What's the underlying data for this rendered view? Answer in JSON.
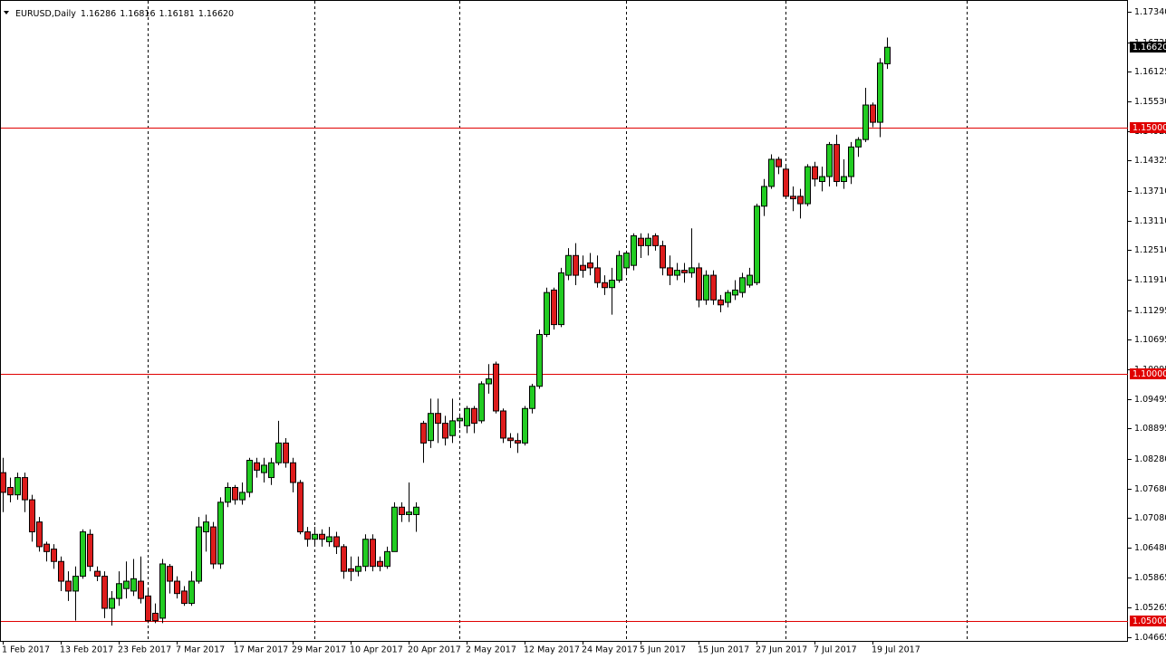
{
  "chart_data": {
    "type": "candlestick",
    "symbol": "EURUSD,Daily",
    "header_ohlc": [
      "1.16286",
      "1.16816",
      "1.16181",
      "1.16620"
    ],
    "categories": [
      "1 Feb 2017",
      null,
      null,
      null,
      null,
      null,
      null,
      null,
      "13 Feb 2017",
      null,
      null,
      null,
      null,
      null,
      null,
      null,
      "23 Feb 2017",
      null,
      null,
      null,
      null,
      null,
      null,
      null,
      "7 Mar 2017",
      null,
      null,
      null,
      null,
      null,
      null,
      null,
      "17 Mar 2017",
      null,
      null,
      null,
      null,
      null,
      null,
      null,
      "29 Mar 2017",
      null,
      null,
      null,
      null,
      null,
      null,
      null,
      "10 Apr 2017",
      null,
      null,
      null,
      null,
      null,
      null,
      null,
      "20 Apr 2017",
      null,
      null,
      null,
      null,
      null,
      null,
      null,
      "2 May 2017",
      null,
      null,
      null,
      null,
      null,
      null,
      null,
      "12 May 2017",
      null,
      null,
      null,
      null,
      null,
      null,
      null,
      "24 May 2017",
      null,
      null,
      null,
      null,
      null,
      null,
      null,
      "5 Jun 2017",
      null,
      null,
      null,
      null,
      null,
      null,
      null,
      "15 Jun 2017",
      null,
      null,
      null,
      null,
      null,
      null,
      null,
      "27 Jun 2017",
      null,
      null,
      null,
      null,
      null,
      null,
      null,
      "7 Jul 2017",
      null,
      null,
      null,
      null,
      null,
      null,
      null,
      "19 Jul 2017",
      null,
      null
    ],
    "open": [
      1.08,
      1.077,
      1.0755,
      1.079,
      1.0745,
      1.07,
      1.0655,
      1.0645,
      1.062,
      1.058,
      1.056,
      1.059,
      1.0675,
      1.06,
      1.059,
      1.0525,
      1.0545,
      1.0565,
      1.056,
      1.058,
      1.055,
      1.0515,
      1.0505,
      1.061,
      1.058,
      1.056,
      1.0535,
      1.058,
      1.068,
      1.069,
      1.0615,
      1.074,
      1.077,
      1.0745,
      1.076,
      1.082,
      1.08,
      1.079,
      1.082,
      1.086,
      1.082,
      1.078,
      1.068,
      1.0665,
      1.0675,
      1.066,
      1.067,
      1.065,
      1.0605,
      1.06,
      1.061,
      1.0665,
      1.062,
      1.061,
      1.064,
      1.073,
      1.0715,
      1.0715,
      1.09,
      1.0865,
      1.092,
      1.09,
      1.0875,
      1.0905,
      1.0895,
      1.093,
      1.0905,
      1.098,
      1.102,
      1.0925,
      1.087,
      1.0865,
      1.086,
      1.093,
      1.0975,
      1.108,
      1.117,
      1.11,
      1.12,
      1.124,
      1.122,
      1.1225,
      1.1215,
      1.1185,
      1.1175,
      1.119,
      1.1215,
      1.122,
      1.1275,
      1.126,
      1.128,
      1.126,
      1.1215,
      1.12,
      1.121,
      1.1205,
      1.1215,
      1.115,
      1.12,
      1.115,
      1.1145,
      1.116,
      1.1165,
      1.118,
      1.1185,
      1.134,
      1.138,
      1.1435,
      1.1415,
      1.136,
      1.136,
      1.1345,
      1.142,
      1.139,
      1.14,
      1.1465,
      1.139,
      1.14,
      1.146,
      1.1475,
      1.1545,
      1.151,
      1.16286
    ],
    "high": [
      1.083,
      1.079,
      1.08,
      1.08,
      1.0755,
      1.071,
      1.066,
      1.0655,
      1.063,
      1.06,
      1.061,
      1.0685,
      1.0685,
      1.061,
      1.06,
      1.056,
      1.06,
      1.062,
      1.0625,
      1.063,
      1.0565,
      1.0535,
      1.0625,
      1.0615,
      1.059,
      1.057,
      1.06,
      1.071,
      1.0715,
      1.07,
      1.075,
      1.078,
      1.0775,
      1.078,
      1.083,
      1.083,
      1.083,
      1.083,
      1.0905,
      1.087,
      1.083,
      1.0785,
      1.069,
      1.069,
      1.0685,
      1.069,
      1.068,
      1.0655,
      1.063,
      1.063,
      1.0675,
      1.0675,
      1.063,
      1.065,
      1.074,
      1.074,
      1.078,
      1.074,
      1.0905,
      1.095,
      1.095,
      1.0915,
      1.095,
      1.092,
      1.0935,
      1.0935,
      1.0985,
      1.102,
      1.1025,
      1.093,
      1.088,
      1.088,
      1.0935,
      1.098,
      1.109,
      1.1175,
      1.1175,
      1.1215,
      1.1255,
      1.1265,
      1.124,
      1.1245,
      1.124,
      1.12,
      1.1215,
      1.125,
      1.125,
      1.1285,
      1.1285,
      1.1285,
      1.1285,
      1.127,
      1.124,
      1.1225,
      1.1225,
      1.1295,
      1.1225,
      1.121,
      1.121,
      1.116,
      1.117,
      1.119,
      1.1205,
      1.1215,
      1.1345,
      1.1395,
      1.1445,
      1.144,
      1.142,
      1.138,
      1.1375,
      1.1425,
      1.143,
      1.142,
      1.147,
      1.1485,
      1.1435,
      1.147,
      1.148,
      1.158,
      1.155,
      1.164,
      1.16816
    ],
    "low": [
      1.072,
      1.074,
      1.0745,
      1.072,
      1.066,
      1.064,
      1.062,
      1.0605,
      1.056,
      1.054,
      1.05,
      1.0585,
      1.06,
      1.058,
      1.0505,
      1.049,
      1.053,
      1.0545,
      1.055,
      1.0535,
      1.0495,
      1.0495,
      1.0495,
      1.0555,
      1.0545,
      1.053,
      1.053,
      1.0575,
      1.064,
      1.0605,
      1.0605,
      1.073,
      1.0735,
      1.0735,
      1.075,
      1.079,
      1.078,
      1.0775,
      1.0815,
      1.081,
      1.076,
      1.0675,
      1.065,
      1.065,
      1.065,
      1.065,
      1.0635,
      1.0585,
      1.058,
      1.059,
      1.06,
      1.06,
      1.06,
      1.0605,
      1.064,
      1.07,
      1.07,
      1.068,
      1.082,
      1.085,
      1.086,
      1.0855,
      1.086,
      1.089,
      1.088,
      1.088,
      1.09,
      1.096,
      1.092,
      1.086,
      1.085,
      1.084,
      1.0855,
      1.092,
      1.097,
      1.1075,
      1.109,
      1.1095,
      1.119,
      1.118,
      1.1195,
      1.12,
      1.1175,
      1.116,
      1.112,
      1.1185,
      1.12,
      1.121,
      1.1235,
      1.124,
      1.125,
      1.12,
      1.118,
      1.119,
      1.1185,
      1.1195,
      1.1135,
      1.114,
      1.114,
      1.1125,
      1.1135,
      1.115,
      1.1155,
      1.1175,
      1.118,
      1.132,
      1.1375,
      1.1405,
      1.1355,
      1.133,
      1.1315,
      1.134,
      1.138,
      1.137,
      1.138,
      1.138,
      1.1375,
      1.1385,
      1.144,
      1.147,
      1.15,
      1.148,
      1.16181
    ],
    "close": [
      1.076,
      1.0755,
      1.079,
      1.0745,
      1.068,
      1.065,
      1.064,
      1.062,
      1.058,
      1.056,
      1.059,
      1.068,
      1.061,
      1.059,
      1.0525,
      1.0545,
      1.0575,
      1.058,
      1.0585,
      1.0545,
      1.05,
      1.05,
      1.0615,
      1.058,
      1.0555,
      1.0535,
      1.058,
      1.069,
      1.07,
      1.0615,
      1.074,
      1.077,
      1.0745,
      1.076,
      1.0825,
      1.0805,
      1.0815,
      1.082,
      1.086,
      1.082,
      1.078,
      1.068,
      1.0665,
      1.0675,
      1.0665,
      1.067,
      1.065,
      1.06,
      1.06,
      1.061,
      1.0665,
      1.061,
      1.061,
      1.064,
      1.073,
      1.0715,
      1.072,
      1.073,
      1.086,
      1.092,
      1.09,
      1.087,
      1.0905,
      1.091,
      1.093,
      1.09,
      1.098,
      1.099,
      1.0925,
      1.087,
      1.0865,
      1.086,
      1.093,
      1.0975,
      1.108,
      1.1165,
      1.11,
      1.1205,
      1.124,
      1.12,
      1.121,
      1.1215,
      1.1185,
      1.1175,
      1.119,
      1.124,
      1.1245,
      1.128,
      1.126,
      1.1275,
      1.126,
      1.1215,
      1.12,
      1.121,
      1.1205,
      1.1215,
      1.115,
      1.12,
      1.115,
      1.114,
      1.1165,
      1.117,
      1.1195,
      1.12,
      1.134,
      1.138,
      1.1435,
      1.142,
      1.136,
      1.1355,
      1.1345,
      1.142,
      1.1395,
      1.14,
      1.1465,
      1.139,
      1.14,
      1.146,
      1.1475,
      1.1545,
      1.151,
      1.163,
      1.1662
    ],
    "up_color": "#22cc22",
    "down_color": "#dd1c1c",
    "ylim": [
      1.0459,
      1.1756
    ],
    "yticks": [
      {
        "value": 1.1734,
        "label": "1.17340"
      },
      {
        "value": 1.16725,
        "label": "1.16725"
      },
      {
        "value": 1.16125,
        "label": "1.16125"
      },
      {
        "value": 1.1553,
        "label": "1.15530"
      },
      {
        "value": 1.14925,
        "label": "1.14925"
      },
      {
        "value": 1.14325,
        "label": "1.14325"
      },
      {
        "value": 1.1371,
        "label": "1.13710"
      },
      {
        "value": 1.1311,
        "label": "1.13110"
      },
      {
        "value": 1.1251,
        "label": "1.12510"
      },
      {
        "value": 1.1191,
        "label": "1.11910"
      },
      {
        "value": 1.11295,
        "label": "1.11295"
      },
      {
        "value": 1.10695,
        "label": "1.10695"
      },
      {
        "value": 1.10095,
        "label": "1.10095"
      },
      {
        "value": 1.09495,
        "label": "1.09495"
      },
      {
        "value": 1.08895,
        "label": "1.08895"
      },
      {
        "value": 1.0828,
        "label": "1.08280"
      },
      {
        "value": 1.0768,
        "label": "1.07680"
      },
      {
        "value": 1.0708,
        "label": "1.07080"
      },
      {
        "value": 1.0648,
        "label": "1.06480"
      },
      {
        "value": 1.05865,
        "label": "1.05865"
      },
      {
        "value": 1.05265,
        "label": "1.05265"
      },
      {
        "value": 1.04665,
        "label": "1.04665"
      }
    ],
    "levels": [
      {
        "value": 1.15,
        "label": "1.15000"
      },
      {
        "value": 1.1,
        "label": "1.10000"
      },
      {
        "value": 1.05,
        "label": "1.05000"
      }
    ],
    "level_color": "#e00000",
    "current_price": {
      "value": 1.1662,
      "label": "1.16620"
    }
  }
}
